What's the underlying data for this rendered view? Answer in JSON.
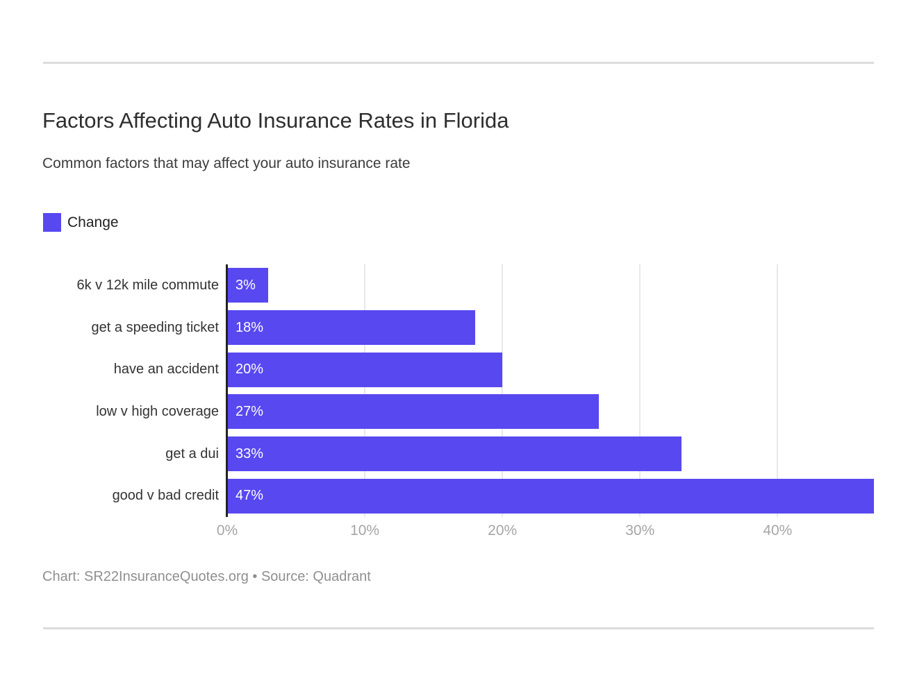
{
  "header": {
    "title": "Factors Affecting Auto Insurance Rates in Florida",
    "subtitle": "Common factors that may affect your auto insurance rate"
  },
  "legend": {
    "label": "Change",
    "color": "#5848F0"
  },
  "chart_data": {
    "type": "bar",
    "orientation": "horizontal",
    "title": "Factors Affecting Auto Insurance Rates in Florida",
    "subtitle": "Common factors that may affect your auto insurance rate",
    "categories": [
      "6k v 12k mile commute",
      "get a speeding ticket",
      "have an accident",
      "low v high coverage",
      "get a dui",
      "good v bad credit"
    ],
    "series": [
      {
        "name": "Change",
        "values": [
          3,
          18,
          20,
          27,
          33,
          47
        ]
      }
    ],
    "value_labels": [
      "3%",
      "18%",
      "20%",
      "27%",
      "33%",
      "47%"
    ],
    "xlabel": "",
    "ylabel": "",
    "xlim": [
      0,
      47
    ],
    "x_ticks": [
      0,
      10,
      20,
      30,
      40
    ],
    "x_tick_labels": [
      "0%",
      "10%",
      "20%",
      "30%",
      "40%"
    ],
    "grid": "vertical-only",
    "legend_position": "top-left",
    "bar_color": "#5848F0",
    "grid_color": "#E8E8E8",
    "axis_line_color": "#222222"
  },
  "footer": {
    "text": "Chart: SR22InsuranceQuotes.org • Source: Quadrant"
  }
}
